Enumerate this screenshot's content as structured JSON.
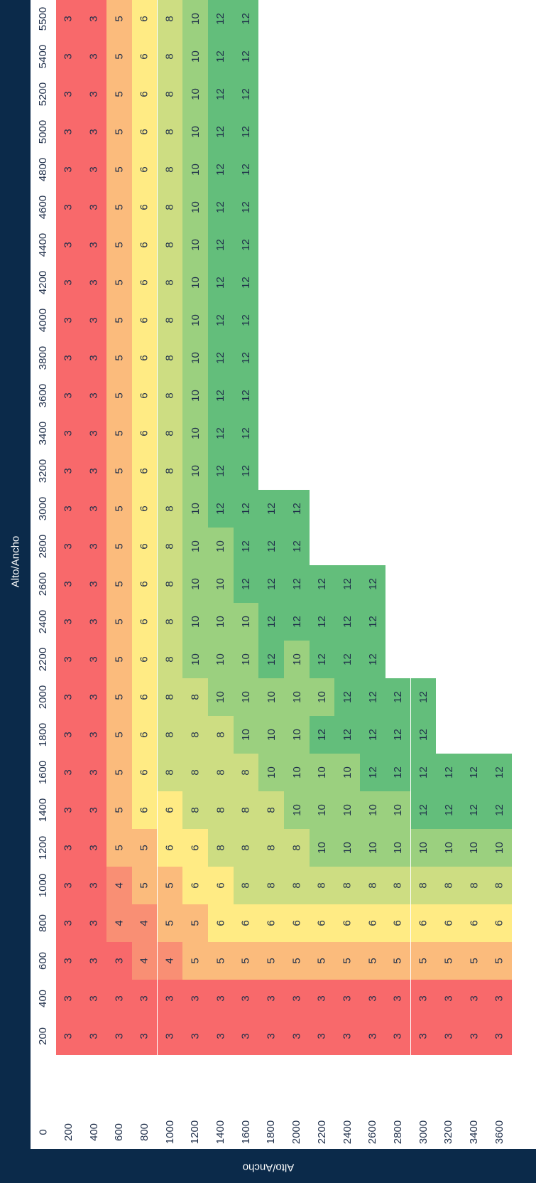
{
  "axis_title_top": "Alto/Ancho",
  "axis_title_side": "Alto/Ancho",
  "corner_label": "0",
  "anchos": [
    "200",
    "400",
    "600",
    "800",
    "1000",
    "1200",
    "1400",
    "1600",
    "1800",
    "2000",
    "2200",
    "2400",
    "2600",
    "2800",
    "3000",
    "3200",
    "3400",
    "3600"
  ],
  "altos": [
    "5500",
    "5400",
    "5200",
    "5000",
    "4800",
    "4600",
    "4400",
    "4200",
    "4000",
    "3800",
    "3600",
    "3400",
    "3200",
    "3000",
    "2800",
    "2600",
    "2400",
    "2200",
    "2000",
    "1800",
    "1600",
    "1400",
    "1200",
    "1000",
    "800",
    "600",
    "400",
    "200"
  ],
  "rows": [
    [
      3,
      3,
      5,
      6,
      8,
      10,
      12,
      12
    ],
    [
      3,
      3,
      5,
      6,
      8,
      10,
      12,
      12
    ],
    [
      3,
      3,
      5,
      6,
      8,
      10,
      12,
      12
    ],
    [
      3,
      3,
      5,
      6,
      8,
      10,
      12,
      12
    ],
    [
      3,
      3,
      5,
      6,
      8,
      10,
      12,
      12
    ],
    [
      3,
      3,
      5,
      6,
      8,
      10,
      12,
      12
    ],
    [
      3,
      3,
      5,
      6,
      8,
      10,
      12,
      12
    ],
    [
      3,
      3,
      5,
      6,
      8,
      10,
      12,
      12
    ],
    [
      3,
      3,
      5,
      6,
      8,
      10,
      12,
      12
    ],
    [
      3,
      3,
      5,
      6,
      8,
      10,
      12,
      12
    ],
    [
      3,
      3,
      5,
      6,
      8,
      10,
      12,
      12
    ],
    [
      3,
      3,
      5,
      6,
      8,
      10,
      12,
      12
    ],
    [
      3,
      3,
      5,
      6,
      8,
      10,
      12,
      12
    ],
    [
      3,
      3,
      5,
      6,
      8,
      10,
      12,
      12,
      12,
      12
    ],
    [
      3,
      3,
      5,
      6,
      8,
      10,
      10,
      12,
      12,
      12
    ],
    [
      3,
      3,
      5,
      6,
      8,
      10,
      10,
      12,
      12,
      12,
      12,
      12,
      12
    ],
    [
      3,
      3,
      5,
      6,
      8,
      10,
      10,
      10,
      12,
      12,
      12,
      12,
      12
    ],
    [
      3,
      3,
      5,
      6,
      8,
      10,
      10,
      10,
      12,
      10,
      12,
      12,
      12
    ],
    [
      3,
      3,
      5,
      6,
      8,
      8,
      10,
      10,
      10,
      10,
      10,
      12,
      12,
      12,
      12
    ],
    [
      3,
      3,
      5,
      6,
      8,
      8,
      8,
      10,
      10,
      10,
      12,
      12,
      12,
      12,
      12
    ],
    [
      3,
      3,
      5,
      6,
      8,
      8,
      8,
      8,
      10,
      10,
      10,
      10,
      12,
      12,
      12,
      12,
      12,
      12
    ],
    [
      3,
      3,
      5,
      6,
      6,
      8,
      8,
      8,
      8,
      10,
      10,
      10,
      10,
      10,
      12,
      12,
      12,
      12
    ],
    [
      3,
      3,
      5,
      5,
      6,
      6,
      8,
      8,
      8,
      8,
      10,
      10,
      10,
      10,
      10,
      10,
      10,
      10
    ],
    [
      3,
      3,
      4,
      5,
      5,
      6,
      6,
      8,
      8,
      8,
      8,
      8,
      8,
      8,
      8,
      8,
      8,
      8
    ],
    [
      3,
      3,
      4,
      4,
      5,
      5,
      6,
      6,
      6,
      6,
      6,
      6,
      6,
      6,
      6,
      6,
      6,
      6
    ],
    [
      3,
      3,
      3,
      4,
      4,
      5,
      5,
      5,
      5,
      5,
      5,
      5,
      5,
      5,
      5,
      5,
      5,
      5
    ],
    [
      3,
      3,
      3,
      3,
      3,
      3,
      3,
      3,
      3,
      3,
      3,
      3,
      3,
      3,
      3,
      3,
      3,
      3
    ],
    [
      3,
      3,
      3,
      3,
      3,
      3,
      3,
      3,
      3,
      3,
      3,
      3,
      3,
      3,
      3,
      3,
      3,
      3
    ]
  ],
  "colors": {
    "3": "#f8696b",
    "4": "#f98f74",
    "5": "#fbbb7c",
    "6": "#ffeb84",
    "8": "#cddd82",
    "10": "#9bd07f",
    "12": "#63be7b",
    "frame": "#0b2a4a"
  }
}
